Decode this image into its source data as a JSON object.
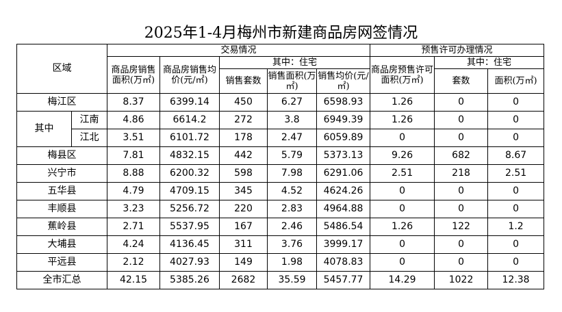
{
  "title": "2025年1-4月梅州市新建商品房网签情况",
  "headers": {
    "district": "区域",
    "transaction": "交易情况",
    "presale": "预售许可办理情况",
    "sales_area": "商品房销售面积(万㎡)",
    "avg_price": "商品房销售均价(元/㎡)",
    "residential": "其中：住宅",
    "res_units": "销售套数",
    "res_area": "销售面积(万㎡)",
    "res_price": "销售均价(元/㎡)",
    "presale_area": "商品房预售许可面积(万㎡)",
    "presale_residential": "其中：住宅",
    "presale_units": "套数",
    "presale_res_area": "面积(万㎡)",
    "of_which": "其中"
  },
  "rows": [
    {
      "name": "梅江区",
      "sales_area": "8.37",
      "avg_price": "6399.14",
      "units": "450",
      "res_area": "6.27",
      "res_price": "6598.93",
      "presale_area": "1.26",
      "presale_units": "0",
      "presale_res_area": "0"
    },
    {
      "name": "江南",
      "sales_area": "4.86",
      "avg_price": "6614.2",
      "units": "272",
      "res_area": "3.8",
      "res_price": "6949.39",
      "presale_area": "1.26",
      "presale_units": "0",
      "presale_res_area": "0"
    },
    {
      "name": "江北",
      "sales_area": "3.51",
      "avg_price": "6101.72",
      "units": "178",
      "res_area": "2.47",
      "res_price": "6059.89",
      "presale_area": "0",
      "presale_units": "0",
      "presale_res_area": "0"
    },
    {
      "name": "梅县区",
      "sales_area": "7.81",
      "avg_price": "4832.15",
      "units": "442",
      "res_area": "5.79",
      "res_price": "5373.13",
      "presale_area": "9.26",
      "presale_units": "682",
      "presale_res_area": "8.67"
    },
    {
      "name": "兴宁市",
      "sales_area": "8.88",
      "avg_price": "6200.32",
      "units": "598",
      "res_area": "7.98",
      "res_price": "6291.06",
      "presale_area": "2.51",
      "presale_units": "218",
      "presale_res_area": "2.51"
    },
    {
      "name": "五华县",
      "sales_area": "4.79",
      "avg_price": "4709.15",
      "units": "345",
      "res_area": "4.52",
      "res_price": "4624.26",
      "presale_area": "0",
      "presale_units": "0",
      "presale_res_area": "0"
    },
    {
      "name": "丰顺县",
      "sales_area": "3.23",
      "avg_price": "5256.72",
      "units": "220",
      "res_area": "2.83",
      "res_price": "4964.88",
      "presale_area": "0",
      "presale_units": "0",
      "presale_res_area": "0"
    },
    {
      "name": "蕉岭县",
      "sales_area": "2.71",
      "avg_price": "5537.95",
      "units": "167",
      "res_area": "2.46",
      "res_price": "5486.54",
      "presale_area": "1.26",
      "presale_units": "122",
      "presale_res_area": "1.2"
    },
    {
      "name": "大埔县",
      "sales_area": "4.24",
      "avg_price": "4136.45",
      "units": "311",
      "res_area": "3.76",
      "res_price": "3999.17",
      "presale_area": "0",
      "presale_units": "0",
      "presale_res_area": "0"
    },
    {
      "name": "平远县",
      "sales_area": "2.12",
      "avg_price": "4027.93",
      "units": "149",
      "res_area": "1.98",
      "res_price": "4078.83",
      "presale_area": "0",
      "presale_units": "0",
      "presale_res_area": "0"
    },
    {
      "name": "全市汇总",
      "sales_area": "42.15",
      "avg_price": "5385.26",
      "units": "2682",
      "res_area": "35.59",
      "res_price": "5457.77",
      "presale_area": "14.29",
      "presale_units": "1022",
      "presale_res_area": "12.38"
    }
  ]
}
